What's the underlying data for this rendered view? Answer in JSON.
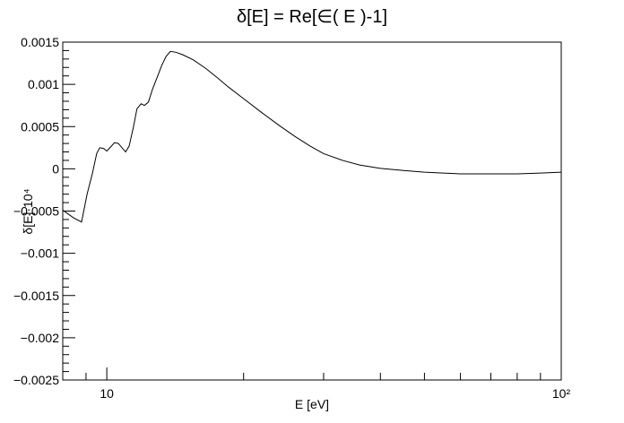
{
  "chart_data": {
    "type": "line",
    "title": "δ[E] = Re[∈( E )-1]",
    "xlabel": "E [eV]",
    "ylabel": "δ[E]·10⁴",
    "x_scale": "log",
    "xlim": [
      8,
      100
    ],
    "ylim": [
      -0.0025,
      0.0015
    ],
    "grid": false,
    "x_tick_labels": [
      {
        "value": 10,
        "label": "10"
      },
      {
        "value": 100,
        "label": "10²"
      }
    ],
    "y_tick_labels": [
      {
        "value": 0.0015,
        "label": "0.0015"
      },
      {
        "value": 0.001,
        "label": "0.001"
      },
      {
        "value": 0.0005,
        "label": "0.0005"
      },
      {
        "value": 0,
        "label": "0"
      },
      {
        "value": -0.0005,
        "label": "−0.0005"
      },
      {
        "value": -0.001,
        "label": "−0.001"
      },
      {
        "value": -0.0015,
        "label": "−0.0015"
      },
      {
        "value": -0.002,
        "label": "−0.002"
      },
      {
        "value": -0.0025,
        "label": "−0.0025"
      }
    ],
    "series": [
      {
        "color": "#000000",
        "points": [
          [
            8.0,
            -0.00049
          ],
          [
            8.45,
            -0.00058
          ],
          [
            8.8,
            -0.00063
          ],
          [
            9.05,
            -0.0003
          ],
          [
            9.3,
            -5e-05
          ],
          [
            9.5,
            0.00018
          ],
          [
            9.65,
            0.00025
          ],
          [
            9.85,
            0.00024
          ],
          [
            10.0,
            0.00021
          ],
          [
            10.2,
            0.00026
          ],
          [
            10.4,
            0.00031
          ],
          [
            10.6,
            0.0003
          ],
          [
            10.8,
            0.00025
          ],
          [
            11.0,
            0.0002
          ],
          [
            11.2,
            0.00027
          ],
          [
            11.45,
            0.0005
          ],
          [
            11.65,
            0.00071
          ],
          [
            11.9,
            0.00077
          ],
          [
            12.1,
            0.00075
          ],
          [
            12.35,
            0.00079
          ],
          [
            12.6,
            0.00094
          ],
          [
            12.9,
            0.00108
          ],
          [
            13.2,
            0.00122
          ],
          [
            13.5,
            0.00133
          ],
          [
            13.8,
            0.00139
          ],
          [
            14.2,
            0.00138
          ],
          [
            14.7,
            0.00135
          ],
          [
            15.5,
            0.00129
          ],
          [
            16.5,
            0.00119
          ],
          [
            17.5,
            0.00108
          ],
          [
            18.5,
            0.00097
          ],
          [
            20,
            0.00083
          ],
          [
            22,
            0.00066
          ],
          [
            24,
            0.00051
          ],
          [
            26,
            0.00038
          ],
          [
            28,
            0.00027
          ],
          [
            30,
            0.00018
          ],
          [
            33,
            0.0001
          ],
          [
            36,
            4.5e-05
          ],
          [
            40,
            5e-06
          ],
          [
            45,
            -2e-05
          ],
          [
            50,
            -4e-05
          ],
          [
            55,
            -5e-05
          ],
          [
            60,
            -6e-05
          ],
          [
            70,
            -6e-05
          ],
          [
            80,
            -6e-05
          ],
          [
            90,
            -5e-05
          ],
          [
            100,
            -4e-05
          ]
        ]
      }
    ]
  }
}
